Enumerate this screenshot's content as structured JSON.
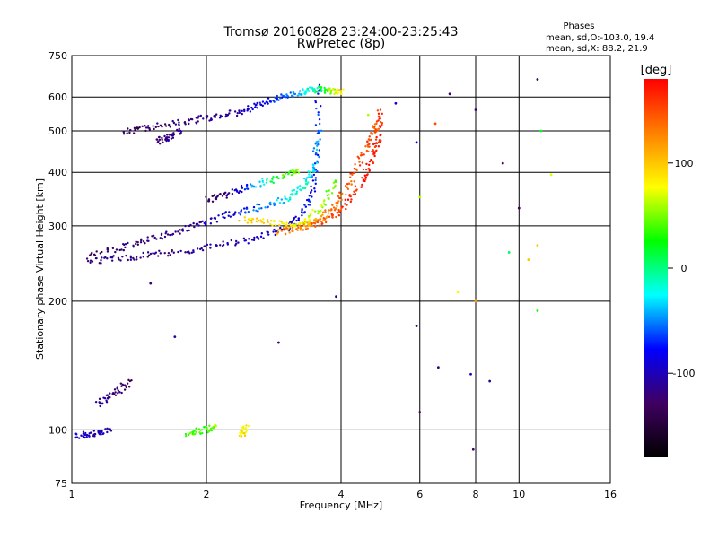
{
  "chart_data": {
    "type": "scatter",
    "title": "Tromsø 20160828 23:24:00-23:25:43",
    "subtitle": "RwPretec (8p)",
    "xlabel": "Frequency [MHz]",
    "ylabel": "Stationary phase Virtual Height [km]",
    "x_scale": "log",
    "y_scale": "log",
    "xlim": [
      1,
      16
    ],
    "ylim": [
      75,
      750
    ],
    "x_ticks": [
      1,
      2,
      4,
      6,
      8,
      10,
      16
    ],
    "y_ticks": [
      75,
      100,
      200,
      300,
      400,
      500,
      600,
      750
    ],
    "grid": true,
    "stats": {
      "header": "Phases",
      "line_o": "mean, sd,O:-103.0, 19.4",
      "line_x": "mean, sd,X:  88.2, 21.9"
    },
    "colorbar": {
      "label": "[deg]",
      "range": [
        -180,
        180
      ],
      "ticks": [
        100,
        0,
        -100
      ],
      "colormap": [
        "#000000",
        "#400060",
        "#0000ff",
        "#00ffff",
        "#00ff00",
        "#ffff00",
        "#ff8000",
        "#ff0000"
      ]
    },
    "traces": [
      {
        "name": "",
        "kind": "curve",
        "x": [
          1.08,
          1.3,
          1.6,
          2.0,
          2.5,
          3.0,
          3.3,
          3.5,
          3.56
        ],
        "y": [
          248,
          252,
          258,
          266,
          278,
          295,
          320,
          380,
          500
        ],
        "phase": [
          -120,
          -118,
          -115,
          -110,
          -100,
          -90,
          -80,
          -70,
          -60
        ]
      },
      {
        "name": "",
        "kind": "curve",
        "x": [
          1.1,
          1.35,
          1.6,
          1.9,
          2.2,
          2.6,
          3.0,
          3.3,
          3.5,
          3.58
        ],
        "y": [
          255,
          270,
          285,
          300,
          318,
          330,
          345,
          370,
          420,
          640
        ],
        "phase": [
          -130,
          -125,
          -120,
          -110,
          -90,
          -60,
          -30,
          -10,
          -40,
          -80
        ]
      },
      {
        "name": "",
        "kind": "curve",
        "x": [
          2.9,
          3.2,
          3.6,
          4.0,
          4.4,
          4.7,
          4.85,
          4.9
        ],
        "y": [
          290,
          295,
          305,
          325,
          370,
          430,
          480,
          560
        ],
        "phase": [
          120,
          130,
          150,
          160,
          170,
          170,
          165,
          160
        ]
      },
      {
        "name": "",
        "kind": "curve",
        "x": [
          3.2,
          3.6,
          3.95,
          4.3,
          4.6,
          4.8
        ],
        "y": [
          300,
          310,
          340,
          400,
          470,
          520
        ],
        "phase": [
          110,
          120,
          140,
          150,
          150,
          140
        ]
      },
      {
        "name": "",
        "kind": "curve",
        "x": [
          2.4,
          2.8,
          3.2,
          3.6,
          3.9
        ],
        "y": [
          310,
          305,
          300,
          330,
          380
        ],
        "phase": [
          100,
          90,
          80,
          60,
          40
        ]
      },
      {
        "name": "",
        "kind": "curve",
        "x": [
          1.3,
          1.5,
          1.8,
          2.1,
          2.4,
          2.7,
          3.0,
          3.3,
          3.55,
          3.8,
          4.0
        ],
        "y": [
          498,
          510,
          525,
          540,
          555,
          580,
          605,
          620,
          625,
          620,
          615
        ],
        "phase": [
          -130,
          -125,
          -120,
          -110,
          -100,
          -80,
          -60,
          -30,
          0,
          50,
          90
        ]
      },
      {
        "name": "",
        "kind": "curve",
        "x": [
          1.55,
          1.65,
          1.75
        ],
        "y": [
          470,
          485,
          500
        ],
        "phase": [
          -120,
          -115,
          -110
        ]
      },
      {
        "name": "",
        "kind": "curve",
        "x": [
          2.0,
          2.2,
          2.5,
          2.9,
          3.2
        ],
        "y": [
          345,
          355,
          370,
          390,
          405
        ],
        "phase": [
          -140,
          -120,
          -60,
          20,
          60
        ]
      },
      {
        "name": "",
        "kind": "curve",
        "x": [
          1.15,
          1.25,
          1.35
        ],
        "y": [
          115,
          122,
          130
        ],
        "phase": [
          -110,
          -120,
          -130
        ]
      },
      {
        "name": "",
        "kind": "curve",
        "x": [
          1.02,
          1.12,
          1.22
        ],
        "y": [
          97,
          98,
          100
        ],
        "phase": [
          -90,
          -100,
          -105
        ]
      },
      {
        "name": "",
        "kind": "curve",
        "x": [
          1.8,
          2.0,
          2.1
        ],
        "y": [
          98,
          100,
          102
        ],
        "phase": [
          40,
          30,
          60
        ]
      },
      {
        "name": "",
        "kind": "curve",
        "x": [
          2.4,
          2.45
        ],
        "y": [
          97,
          101
        ],
        "phase": [
          90,
          80
        ]
      },
      {
        "name": "",
        "kind": "scatter",
        "x": [
          1.5,
          1.7,
          2.9,
          3.9,
          4.6,
          5.3,
          5.9,
          6.0,
          6.6,
          7.0,
          7.3,
          7.8,
          8.0,
          8.6,
          9.2,
          10.0,
          11.0,
          11.2,
          11.8,
          11.0,
          9.5,
          8.0,
          6.5,
          6.0,
          5.9,
          7.9,
          11.0,
          10.5
        ],
        "y": [
          220,
          165,
          160,
          205,
          545,
          580,
          470,
          110,
          140,
          610,
          210,
          135,
          200,
          130,
          420,
          330,
          660,
          500,
          395,
          270,
          260,
          560,
          520,
          350,
          175,
          90,
          190,
          250
        ],
        "phase": [
          -120,
          -110,
          -120,
          -110,
          60,
          -90,
          -80,
          -130,
          -120,
          -120,
          80,
          -100,
          120,
          -110,
          -130,
          -130,
          -140,
          20,
          70,
          100,
          10,
          -120,
          150,
          60,
          -120,
          -130,
          30,
          100
        ]
      }
    ]
  }
}
